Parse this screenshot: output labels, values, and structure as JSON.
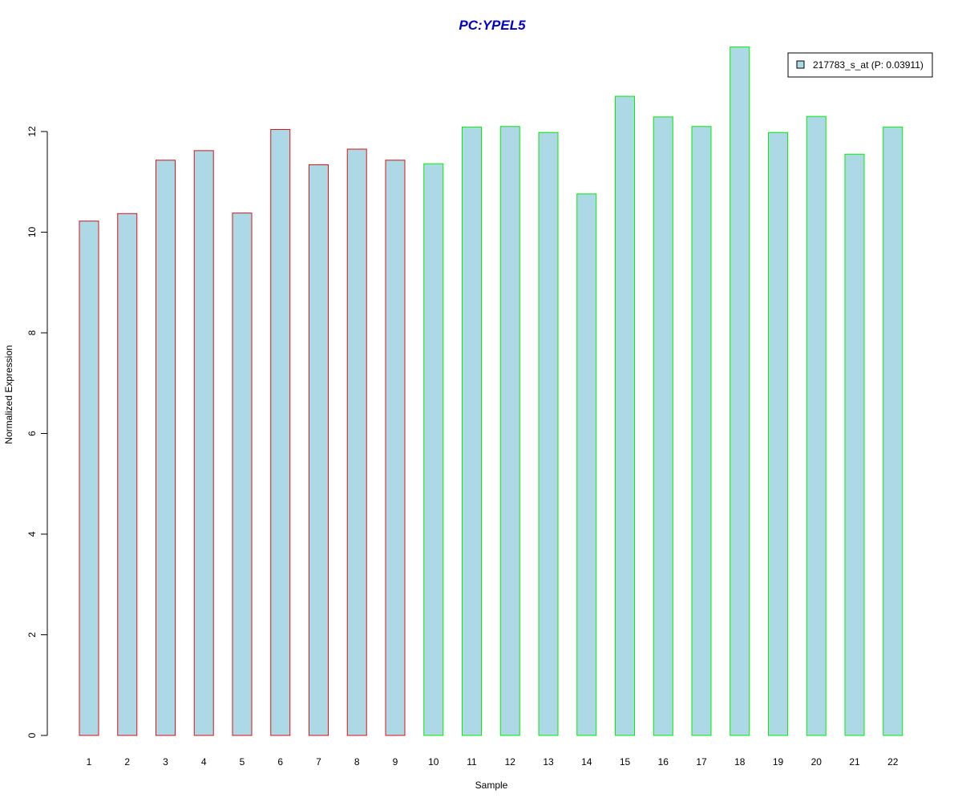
{
  "chart_data": {
    "type": "bar",
    "title": "PC:YPEL5",
    "xlabel": "Sample",
    "ylabel": "Normalized Expression",
    "categories": [
      "1",
      "2",
      "3",
      "4",
      "5",
      "6",
      "7",
      "8",
      "9",
      "10",
      "11",
      "12",
      "13",
      "14",
      "15",
      "16",
      "17",
      "18",
      "19",
      "20",
      "21",
      "22"
    ],
    "series": [
      {
        "name": "217783_s_at (P: 0.03911)",
        "values": [
          10.22,
          10.37,
          11.43,
          11.62,
          10.38,
          12.04,
          11.34,
          11.65,
          11.43,
          11.36,
          12.09,
          12.1,
          11.98,
          10.76,
          12.7,
          12.29,
          12.1,
          13.68,
          11.98,
          12.3,
          11.55,
          12.09
        ]
      }
    ],
    "groups": [
      {
        "range": [
          1,
          9
        ],
        "border_color": "#e01010"
      },
      {
        "range": [
          10,
          22
        ],
        "border_color": "#00ee00"
      }
    ],
    "ylim": [
      0,
      13.68
    ],
    "yticks": [
      "0",
      "2",
      "4",
      "6",
      "8",
      "10",
      "12"
    ],
    "legend_position": "top-right",
    "grid": false
  },
  "colors": {
    "bar_fill": "#add8e6",
    "title": "#0000cd",
    "axis": "#000000"
  }
}
